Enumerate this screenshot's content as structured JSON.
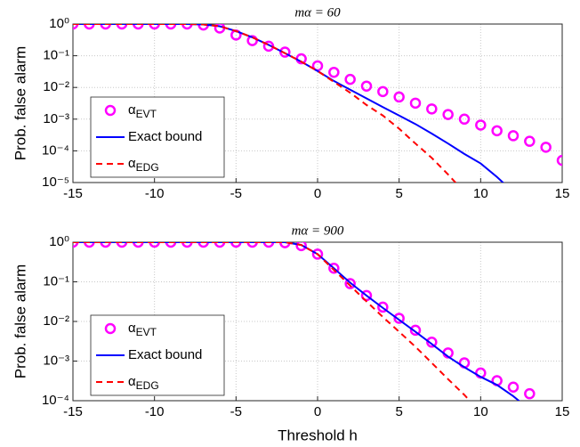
{
  "chart_data": [
    {
      "type": "line",
      "title": "mα = 60",
      "ylabel": "Prob. false alarm",
      "log_y": true,
      "grid": true,
      "legend": "lower left",
      "x": [
        -15,
        -14,
        -13,
        -12,
        -11,
        -10,
        -9,
        -8,
        -7,
        -6,
        -5,
        -4,
        -3,
        -2,
        -1,
        0,
        1,
        2,
        3,
        4,
        5,
        6,
        7,
        8,
        9,
        10,
        11,
        12,
        13,
        14,
        15
      ],
      "xlim": [
        -15,
        15
      ],
      "xticks": [
        -15,
        -10,
        -5,
        0,
        5,
        10,
        15
      ],
      "ylim": [
        1e-05,
        1
      ],
      "yticks": [
        {
          "value": 1e-05,
          "label": "10⁻⁵"
        },
        {
          "value": 0.0001,
          "label": "10⁻⁴"
        },
        {
          "value": 0.001,
          "label": "10⁻³"
        },
        {
          "value": 0.01,
          "label": "10⁻²"
        },
        {
          "value": 0.1,
          "label": "10⁻¹"
        },
        {
          "value": 1,
          "label": "10⁰"
        }
      ],
      "series": [
        {
          "name": "α_EVT",
          "color": "#ff00ff",
          "marker": "o",
          "linestyle": "none",
          "values": [
            1,
            1,
            1,
            1,
            1,
            1,
            1,
            1,
            0.93,
            0.75,
            0.45,
            0.3,
            0.2,
            0.13,
            0.08,
            0.048,
            0.03,
            0.018,
            0.011,
            0.0074,
            0.005,
            0.0032,
            0.0021,
            0.0014,
            0.001,
            0.00065,
            0.00043,
            0.0003,
            0.0002,
            0.00013,
            5e-05
          ]
        },
        {
          "name": "Exact bound",
          "color": "#0000ff",
          "marker": null,
          "linestyle": "solid",
          "values": [
            1,
            1,
            1,
            1,
            1,
            1,
            1,
            1,
            0.97,
            0.85,
            0.6,
            0.38,
            0.22,
            0.12,
            0.065,
            0.033,
            0.016,
            0.0085,
            0.0045,
            0.0024,
            0.0013,
            0.0007,
            0.00035,
            0.00017,
            8e-05,
            4e-05,
            1.5e-05,
            5e-06,
            null,
            null,
            null
          ]
        },
        {
          "name": "α_EDG",
          "color": "#ff0000",
          "marker": null,
          "linestyle": "dashed",
          "values": [
            1,
            1,
            1,
            1,
            1,
            1,
            1,
            1,
            0.97,
            0.85,
            0.6,
            0.38,
            0.22,
            0.12,
            0.065,
            0.033,
            0.015,
            0.0068,
            0.0028,
            0.0013,
            0.0005,
            0.00017,
            6e-05,
            1.8e-05,
            5e-06,
            null,
            null,
            null,
            null,
            null,
            null
          ]
        }
      ]
    },
    {
      "type": "line",
      "title": "mα = 900",
      "xlabel": "Threshold h",
      "ylabel": "Prob. false alarm",
      "log_y": true,
      "grid": true,
      "legend": "lower left",
      "x": [
        -15,
        -14,
        -13,
        -12,
        -11,
        -10,
        -9,
        -8,
        -7,
        -6,
        -5,
        -4,
        -3,
        -2,
        -1,
        0,
        1,
        2,
        3,
        4,
        5,
        6,
        7,
        8,
        9,
        10,
        11,
        12,
        13,
        14,
        15
      ],
      "xlim": [
        -15,
        15
      ],
      "xticks": [
        -15,
        -10,
        -5,
        0,
        5,
        10,
        15
      ],
      "ylim": [
        0.0001,
        1
      ],
      "yticks": [
        {
          "value": 0.0001,
          "label": "10⁻⁴"
        },
        {
          "value": 0.001,
          "label": "10⁻³"
        },
        {
          "value": 0.01,
          "label": "10⁻²"
        },
        {
          "value": 0.1,
          "label": "10⁻¹"
        },
        {
          "value": 1,
          "label": "10⁰"
        }
      ],
      "series": [
        {
          "name": "α_EVT",
          "color": "#ff00ff",
          "marker": "o",
          "linestyle": "none",
          "values": [
            1,
            1,
            1,
            1,
            1,
            1,
            1,
            1,
            1,
            1,
            1,
            1,
            1,
            0.97,
            0.82,
            0.5,
            0.22,
            0.09,
            0.045,
            0.023,
            0.012,
            0.006,
            0.003,
            0.0016,
            0.0009,
            0.0005,
            0.00032,
            0.00022,
            0.00015,
            null,
            null
          ]
        },
        {
          "name": "Exact bound",
          "color": "#0000ff",
          "marker": null,
          "linestyle": "solid",
          "values": [
            1,
            1,
            1,
            1,
            1,
            1,
            1,
            1,
            1,
            1,
            1,
            1,
            1,
            1,
            0.85,
            0.5,
            0.22,
            0.095,
            0.045,
            0.022,
            0.011,
            0.0055,
            0.0027,
            0.0013,
            0.0007,
            0.0004,
            0.00025,
            0.00013,
            6e-05,
            null,
            null
          ]
        },
        {
          "name": "α_EDG",
          "color": "#ff0000",
          "marker": null,
          "linestyle": "dashed",
          "values": [
            1,
            1,
            1,
            1,
            1,
            1,
            1,
            1,
            1,
            1,
            1,
            1,
            1,
            1,
            0.85,
            0.5,
            0.2,
            0.08,
            0.032,
            0.013,
            0.0055,
            0.0023,
            0.0009,
            0.00035,
            0.00014,
            5e-05,
            null,
            null,
            null,
            null,
            null
          ]
        }
      ]
    }
  ]
}
